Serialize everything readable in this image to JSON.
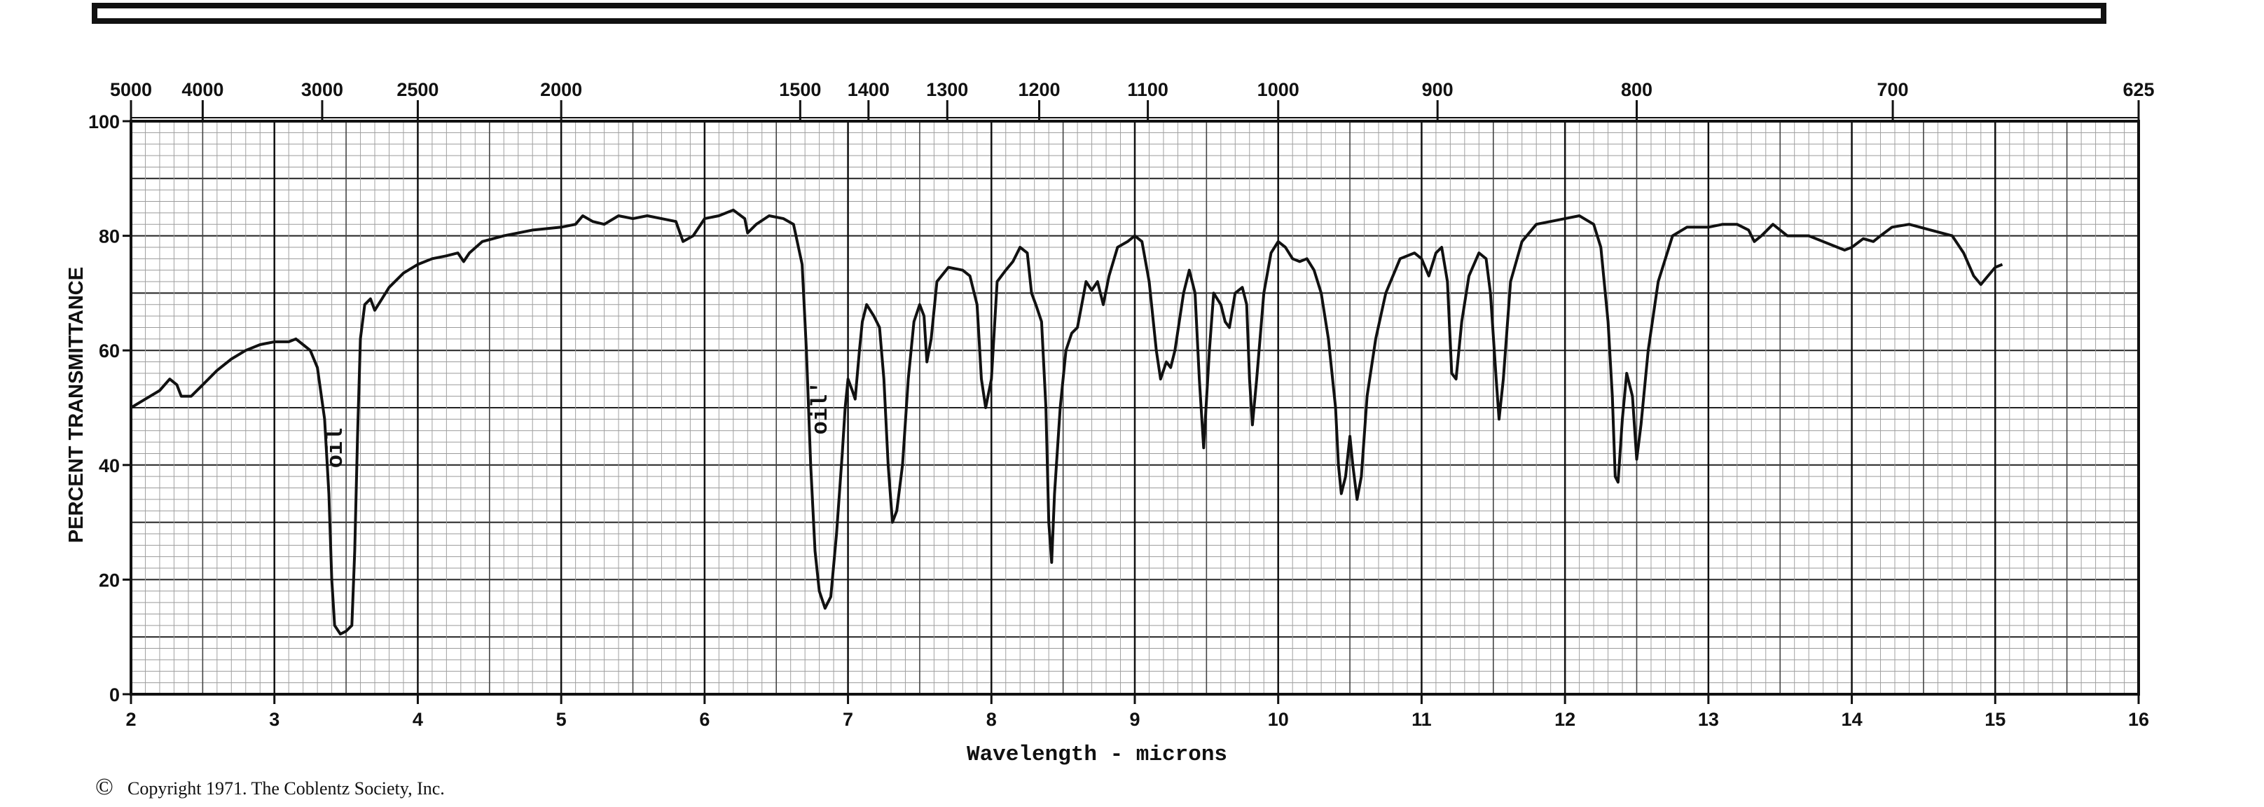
{
  "chart_data": {
    "type": "line",
    "xlabel": "Wavelength - microns",
    "ylabel": "PERCENT TRANSMITTANCE",
    "xlim": [
      2,
      16
    ],
    "ylim": [
      0,
      100
    ],
    "x_ticks": [
      2,
      3,
      4,
      5,
      6,
      7,
      8,
      9,
      10,
      11,
      12,
      13,
      14,
      15,
      16
    ],
    "y_ticks": [
      0,
      20,
      40,
      60,
      80,
      100
    ],
    "wavenumber_ticks": [
      5000,
      4000,
      3000,
      2500,
      2000,
      1500,
      1400,
      1300,
      1200,
      1100,
      1000,
      900,
      800,
      700,
      625
    ],
    "grid": true,
    "annotations": [
      {
        "text": "oil",
        "x": 3.47,
        "y": 43
      },
      {
        "text": "oil'",
        "x": 6.85,
        "y": 50
      }
    ],
    "series": [
      {
        "points": [
          [
            2.0,
            50
          ],
          [
            2.1,
            51.5
          ],
          [
            2.2,
            53
          ],
          [
            2.27,
            55
          ],
          [
            2.32,
            54
          ],
          [
            2.35,
            52
          ],
          [
            2.42,
            52
          ],
          [
            2.5,
            54
          ],
          [
            2.6,
            56.5
          ],
          [
            2.7,
            58.5
          ],
          [
            2.8,
            60
          ],
          [
            2.9,
            61
          ],
          [
            3.0,
            61.5
          ],
          [
            3.1,
            61.5
          ],
          [
            3.15,
            62
          ],
          [
            3.2,
            61
          ],
          [
            3.25,
            60
          ],
          [
            3.3,
            57
          ],
          [
            3.35,
            48
          ],
          [
            3.38,
            35
          ],
          [
            3.4,
            20
          ],
          [
            3.42,
            12
          ],
          [
            3.46,
            10.5
          ],
          [
            3.5,
            11
          ],
          [
            3.54,
            12
          ],
          [
            3.56,
            25
          ],
          [
            3.58,
            45
          ],
          [
            3.6,
            62
          ],
          [
            3.63,
            68
          ],
          [
            3.67,
            69
          ],
          [
            3.7,
            67
          ],
          [
            3.75,
            69
          ],
          [
            3.8,
            71
          ],
          [
            3.9,
            73.5
          ],
          [
            4.0,
            75
          ],
          [
            4.1,
            76
          ],
          [
            4.2,
            76.5
          ],
          [
            4.28,
            77
          ],
          [
            4.32,
            75.5
          ],
          [
            4.36,
            77
          ],
          [
            4.45,
            79
          ],
          [
            4.6,
            80
          ],
          [
            4.8,
            81
          ],
          [
            5.0,
            81.5
          ],
          [
            5.1,
            82
          ],
          [
            5.15,
            83.5
          ],
          [
            5.22,
            82.5
          ],
          [
            5.3,
            82
          ],
          [
            5.4,
            83.5
          ],
          [
            5.5,
            83
          ],
          [
            5.6,
            83.5
          ],
          [
            5.7,
            83
          ],
          [
            5.8,
            82.5
          ],
          [
            5.85,
            79
          ],
          [
            5.92,
            80
          ],
          [
            6.0,
            83
          ],
          [
            6.1,
            83.5
          ],
          [
            6.2,
            84.5
          ],
          [
            6.28,
            83
          ],
          [
            6.3,
            80.5
          ],
          [
            6.36,
            82
          ],
          [
            6.45,
            83.5
          ],
          [
            6.55,
            83
          ],
          [
            6.62,
            82
          ],
          [
            6.68,
            75
          ],
          [
            6.71,
            60
          ],
          [
            6.74,
            40
          ],
          [
            6.77,
            25
          ],
          [
            6.8,
            18
          ],
          [
            6.84,
            15
          ],
          [
            6.88,
            17
          ],
          [
            6.92,
            28
          ],
          [
            6.96,
            42
          ],
          [
            6.98,
            50
          ],
          [
            7.0,
            55
          ],
          [
            7.03,
            53
          ],
          [
            7.05,
            51.5
          ],
          [
            7.08,
            60
          ],
          [
            7.1,
            65
          ],
          [
            7.13,
            68
          ],
          [
            7.18,
            66
          ],
          [
            7.22,
            64
          ],
          [
            7.25,
            55
          ],
          [
            7.28,
            40
          ],
          [
            7.31,
            30
          ],
          [
            7.34,
            32
          ],
          [
            7.38,
            40
          ],
          [
            7.42,
            55
          ],
          [
            7.46,
            65
          ],
          [
            7.5,
            68
          ],
          [
            7.53,
            66
          ],
          [
            7.55,
            58
          ],
          [
            7.58,
            62
          ],
          [
            7.62,
            72
          ],
          [
            7.7,
            74.5
          ],
          [
            7.8,
            74
          ],
          [
            7.85,
            73
          ],
          [
            7.9,
            68
          ],
          [
            7.93,
            55
          ],
          [
            7.96,
            50
          ],
          [
            8.0,
            55
          ],
          [
            8.04,
            72
          ],
          [
            8.1,
            74
          ],
          [
            8.15,
            75.5
          ],
          [
            8.2,
            78
          ],
          [
            8.25,
            77
          ],
          [
            8.28,
            70
          ],
          [
            8.31,
            68
          ],
          [
            8.35,
            65
          ],
          [
            8.38,
            50
          ],
          [
            8.4,
            30
          ],
          [
            8.42,
            23
          ],
          [
            8.44,
            35
          ],
          [
            8.48,
            50
          ],
          [
            8.52,
            60
          ],
          [
            8.56,
            63
          ],
          [
            8.6,
            64
          ],
          [
            8.63,
            68
          ],
          [
            8.66,
            72
          ],
          [
            8.7,
            70.5
          ],
          [
            8.74,
            72
          ],
          [
            8.78,
            68
          ],
          [
            8.82,
            73
          ],
          [
            8.88,
            78
          ],
          [
            8.95,
            79
          ],
          [
            9.0,
            80
          ],
          [
            9.05,
            79
          ],
          [
            9.1,
            72
          ],
          [
            9.15,
            60
          ],
          [
            9.18,
            55
          ],
          [
            9.22,
            58
          ],
          [
            9.25,
            57
          ],
          [
            9.28,
            60
          ],
          [
            9.34,
            70
          ],
          [
            9.38,
            74
          ],
          [
            9.42,
            70
          ],
          [
            9.45,
            55
          ],
          [
            9.48,
            43
          ],
          [
            9.52,
            60
          ],
          [
            9.55,
            70
          ],
          [
            9.6,
            68
          ],
          [
            9.63,
            65
          ],
          [
            9.66,
            64
          ],
          [
            9.7,
            70
          ],
          [
            9.75,
            71
          ],
          [
            9.78,
            68
          ],
          [
            9.8,
            55
          ],
          [
            9.82,
            47
          ],
          [
            9.85,
            55
          ],
          [
            9.9,
            70
          ],
          [
            9.95,
            77
          ],
          [
            10.0,
            79
          ],
          [
            10.05,
            78
          ],
          [
            10.1,
            76
          ],
          [
            10.15,
            75.5
          ],
          [
            10.2,
            76
          ],
          [
            10.25,
            74
          ],
          [
            10.3,
            70
          ],
          [
            10.35,
            62
          ],
          [
            10.4,
            50
          ],
          [
            10.42,
            40
          ],
          [
            10.44,
            35
          ],
          [
            10.47,
            38
          ],
          [
            10.5,
            45
          ],
          [
            10.52,
            40
          ],
          [
            10.55,
            34
          ],
          [
            10.58,
            38
          ],
          [
            10.62,
            52
          ],
          [
            10.68,
            62
          ],
          [
            10.75,
            70
          ],
          [
            10.85,
            76
          ],
          [
            10.95,
            77
          ],
          [
            11.0,
            76
          ],
          [
            11.05,
            73
          ],
          [
            11.1,
            77
          ],
          [
            11.14,
            78
          ],
          [
            11.18,
            72
          ],
          [
            11.21,
            56
          ],
          [
            11.24,
            55
          ],
          [
            11.28,
            65
          ],
          [
            11.33,
            73
          ],
          [
            11.4,
            77
          ],
          [
            11.45,
            76
          ],
          [
            11.48,
            70
          ],
          [
            11.52,
            55
          ],
          [
            11.54,
            48
          ],
          [
            11.57,
            55
          ],
          [
            11.62,
            72
          ],
          [
            11.7,
            79
          ],
          [
            11.8,
            82
          ],
          [
            12.0,
            83
          ],
          [
            12.1,
            83.5
          ],
          [
            12.2,
            82
          ],
          [
            12.25,
            78
          ],
          [
            12.3,
            65
          ],
          [
            12.33,
            52
          ],
          [
            12.35,
            38
          ],
          [
            12.37,
            37
          ],
          [
            12.4,
            48
          ],
          [
            12.43,
            56
          ],
          [
            12.47,
            52
          ],
          [
            12.5,
            41
          ],
          [
            12.53,
            47
          ],
          [
            12.58,
            60
          ],
          [
            12.65,
            72
          ],
          [
            12.75,
            80
          ],
          [
            12.85,
            81.5
          ],
          [
            13.0,
            81.5
          ],
          [
            13.1,
            82
          ],
          [
            13.2,
            82
          ],
          [
            13.28,
            81
          ],
          [
            13.32,
            79
          ],
          [
            13.37,
            80
          ],
          [
            13.45,
            82
          ],
          [
            13.55,
            80
          ],
          [
            13.7,
            80
          ],
          [
            13.8,
            79
          ],
          [
            13.9,
            78
          ],
          [
            13.95,
            77.5
          ],
          [
            14.0,
            78
          ],
          [
            14.08,
            79.5
          ],
          [
            14.15,
            79
          ],
          [
            14.2,
            80
          ],
          [
            14.28,
            81.5
          ],
          [
            14.4,
            82
          ],
          [
            14.55,
            81
          ],
          [
            14.7,
            80
          ],
          [
            14.78,
            77
          ],
          [
            14.85,
            73
          ],
          [
            14.9,
            71.5
          ],
          [
            14.95,
            73
          ],
          [
            15.0,
            74.5
          ],
          [
            15.05,
            75
          ]
        ]
      }
    ]
  },
  "footer": {
    "copyright_symbol": "©",
    "copyright": "Copyright 1971.  The Coblentz Society, Inc."
  }
}
